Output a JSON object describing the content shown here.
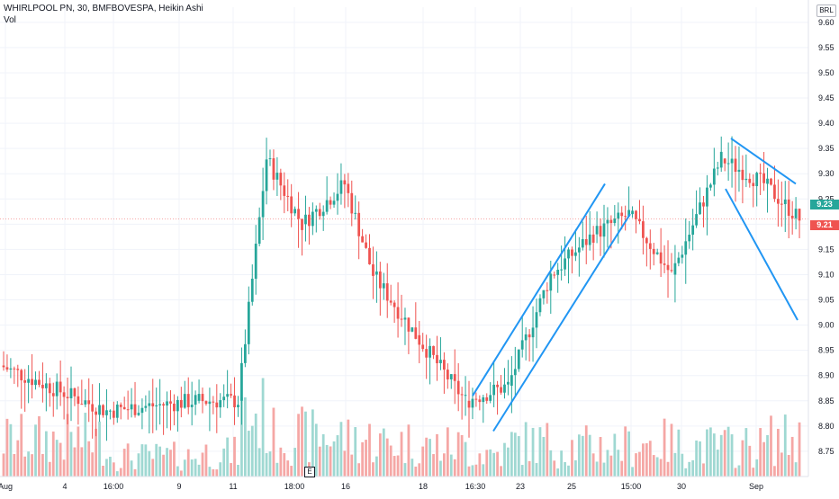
{
  "header": {
    "title": "WHIRLPOOL PN, 30, BMFBOVESPA, Heikin Ashi",
    "indicator": "Vol"
  },
  "currency": "BRL",
  "price_tags": [
    {
      "label": "9.23",
      "value": 9.23,
      "color": "#26a69a"
    },
    {
      "label": "9.21",
      "value": 9.21,
      "color": "#ef5350"
    }
  ],
  "event_marker": "E",
  "colors": {
    "up": "#26a69a",
    "down": "#ef5350",
    "volume_up": "#9fd8d2",
    "volume_down": "#f5a7a5",
    "trendline": "#2196f3",
    "grid": "#f0f3fa",
    "axis_text": "#131722",
    "last_price_line": "#ef5350"
  },
  "chart_data": {
    "type": "candlestick",
    "title": "WHIRLPOOL PN, 30, BMFBOVESPA, Heikin Ashi",
    "ylim": [
      8.7,
      9.63
    ],
    "y_ticks": [
      "9.60",
      "9.55",
      "9.50",
      "9.45",
      "9.40",
      "9.35",
      "9.30",
      "9.25",
      "9.20",
      "9.15",
      "9.10",
      "9.05",
      "9.00",
      "8.95",
      "8.90",
      "8.85",
      "8.80",
      "8.75"
    ],
    "x_ticks": [
      "Aug",
      "4",
      "16:00",
      "9",
      "11",
      "18:00",
      "16",
      "18",
      "16:30",
      "23",
      "25",
      "15:00",
      "30",
      "Sep"
    ],
    "last_price": 9.21,
    "series": [
      {
        "kind": "heikin_ashi",
        "segments": [
          {
            "n": 30,
            "start": 8.92,
            "end": 8.83,
            "vol": 0.55
          },
          {
            "n": 25,
            "start": 8.83,
            "end": 8.85,
            "vol": 0.3
          },
          {
            "n": 12,
            "start": 8.85,
            "end": 8.85,
            "vol": 0.35
          },
          {
            "n": 8,
            "start": 8.85,
            "end": 9.33,
            "vol": 0.9
          },
          {
            "n": 10,
            "start": 9.33,
            "end": 9.2,
            "vol": 0.6
          },
          {
            "n": 12,
            "start": 9.2,
            "end": 9.28,
            "vol": 0.6
          },
          {
            "n": 8,
            "start": 9.28,
            "end": 9.1,
            "vol": 0.55
          },
          {
            "n": 12,
            "start": 9.1,
            "end": 8.98,
            "vol": 0.5
          },
          {
            "n": 14,
            "start": 8.98,
            "end": 8.85,
            "vol": 0.45
          },
          {
            "n": 12,
            "start": 8.85,
            "end": 8.88,
            "vol": 0.35
          },
          {
            "n": 12,
            "start": 8.88,
            "end": 9.1,
            "vol": 0.5
          },
          {
            "n": 12,
            "start": 9.1,
            "end": 9.18,
            "vol": 0.45
          },
          {
            "n": 10,
            "start": 9.18,
            "end": 9.22,
            "vol": 0.45
          },
          {
            "n": 12,
            "start": 9.22,
            "end": 9.1,
            "vol": 0.5
          },
          {
            "n": 14,
            "start": 9.1,
            "end": 9.33,
            "vol": 0.45
          },
          {
            "n": 12,
            "start": 9.33,
            "end": 9.28,
            "vol": 0.45
          },
          {
            "n": 10,
            "start": 9.28,
            "end": 9.21,
            "vol": 0.55
          }
        ]
      },
      {
        "kind": "trendlines",
        "lines": [
          {
            "name": "ascending-channel-upper",
            "x": [
              "16:30",
              "15:00"
            ],
            "y": [
              8.86,
              9.28
            ]
          },
          {
            "name": "ascending-channel-lower",
            "x": [
              "16:30",
              "15:00"
            ],
            "y": [
              8.79,
              9.22
            ]
          },
          {
            "name": "descending-upper",
            "x": [
              "30",
              "Sep"
            ],
            "y": [
              9.37,
              9.28
            ]
          },
          {
            "name": "descending-lower",
            "x": [
              "30",
              "Sep"
            ],
            "y": [
              9.27,
              9.01
            ]
          }
        ]
      }
    ],
    "grid": true,
    "legend_position": "top-left"
  }
}
